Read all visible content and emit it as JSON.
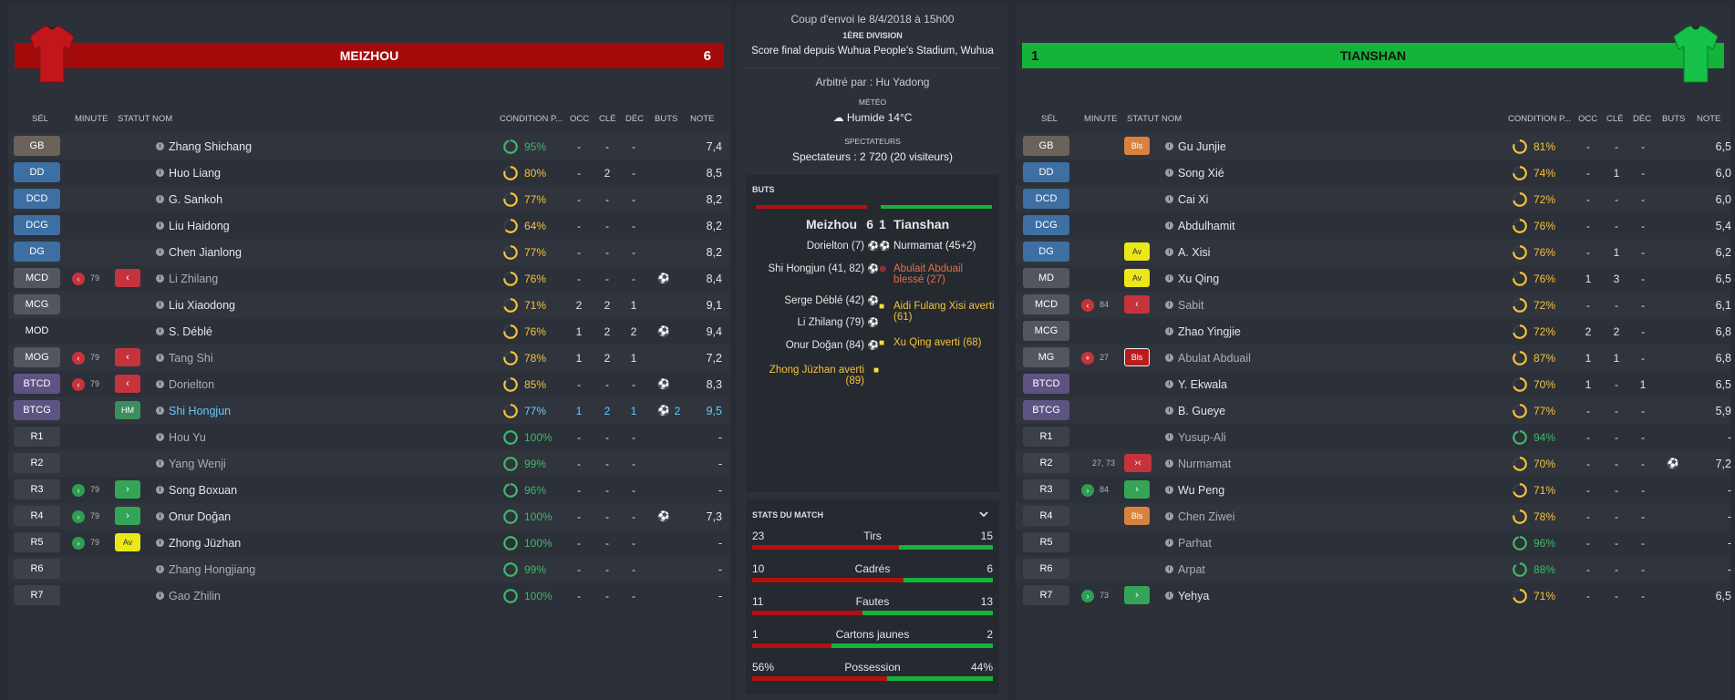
{
  "home": {
    "name": "MEIZHOU",
    "score": "6"
  },
  "away": {
    "name": "TIANSHAN",
    "score": "1"
  },
  "colors": {
    "home": "#a30b0b",
    "away": "#14b33a",
    "condition_full": "#3fb86a",
    "condition_partial": "#f6c23c"
  },
  "columns": {
    "sel": "SÉL",
    "minute": "MINUTE",
    "statut": "STATUT",
    "nom": "NOM",
    "cond": "CONDITION P...",
    "occ": "OCC",
    "cle": "CLÉ",
    "dec": "DÉC",
    "buts": "BUTS",
    "note": "NOTE"
  },
  "home_players": [
    {
      "pos": "GB",
      "name": "Zhang Shichang",
      "cond": "95%",
      "occ": "-",
      "cle": "-",
      "dec": "-",
      "note": "7,4"
    },
    {
      "pos": "DD",
      "name": "Huo Liang",
      "cond": "80%",
      "occ": "-",
      "cle": "2",
      "dec": "-",
      "note": "8,5"
    },
    {
      "pos": "DCD",
      "name": "G. Sankoh",
      "cond": "77%",
      "occ": "-",
      "cle": "-",
      "dec": "-",
      "note": "8,2"
    },
    {
      "pos": "DCG",
      "name": "Liu Haidong",
      "cond": "64%",
      "occ": "-",
      "cle": "-",
      "dec": "-",
      "note": "8,2"
    },
    {
      "pos": "DG",
      "name": "Chen Jianlong",
      "cond": "77%",
      "occ": "-",
      "cle": "-",
      "dec": "-",
      "note": "8,2"
    },
    {
      "pos": "MCD",
      "minute": "79",
      "name": "Li Zhilang",
      "cond": "76%",
      "occ": "-",
      "cle": "-",
      "dec": "-",
      "note": "8,4"
    },
    {
      "pos": "MCG",
      "name": "Liu Xiaodong",
      "cond": "71%",
      "occ": "2",
      "cle": "2",
      "dec": "1",
      "note": "9,1"
    },
    {
      "pos": "MOD",
      "name": "S. Déblé",
      "cond": "76%",
      "occ": "1",
      "cle": "2",
      "dec": "2",
      "note": "9,4"
    },
    {
      "pos": "MOG",
      "minute": "79",
      "name": "Tang Shi",
      "cond": "78%",
      "occ": "1",
      "cle": "2",
      "dec": "1",
      "note": "7,2"
    },
    {
      "pos": "BTCD",
      "minute": "79",
      "name": "Dorielton",
      "cond": "85%",
      "occ": "-",
      "cle": "-",
      "dec": "-",
      "note": "8,3"
    },
    {
      "pos": "BTCG",
      "statut": "HM",
      "name": "Shi Hongjun",
      "cond": "77%",
      "occ": "1",
      "cle": "2",
      "dec": "1",
      "buts": "2",
      "note": "9,5"
    },
    {
      "pos": "R1",
      "name": "Hou Yu",
      "cond": "100%",
      "occ": "-",
      "cle": "-",
      "dec": "-",
      "note": "-"
    },
    {
      "pos": "R2",
      "name": "Yang Wenji",
      "cond": "99%",
      "occ": "-",
      "cle": "-",
      "dec": "-",
      "note": "-"
    },
    {
      "pos": "R3",
      "minute": "79",
      "name": "Song Boxuan",
      "cond": "96%",
      "occ": "-",
      "cle": "-",
      "dec": "-",
      "note": "-"
    },
    {
      "pos": "R4",
      "minute": "79",
      "name": "Onur Doğan",
      "cond": "100%",
      "occ": "-",
      "cle": "-",
      "dec": "-",
      "note": "7,3"
    },
    {
      "pos": "R5",
      "minute": "79",
      "statut": "Av",
      "name": "Zhong Jüzhan",
      "cond": "100%",
      "occ": "-",
      "cle": "-",
      "dec": "-",
      "note": "-"
    },
    {
      "pos": "R6",
      "name": "Zhang Hongjiang",
      "cond": "99%",
      "occ": "-",
      "cle": "-",
      "dec": "-",
      "note": "-"
    },
    {
      "pos": "R7",
      "name": "Gao Zhilin",
      "cond": "100%",
      "occ": "-",
      "cle": "-",
      "dec": "-",
      "note": "-"
    }
  ],
  "away_players": [
    {
      "pos": "GB",
      "statut": "Bls",
      "name": "Gu Junjie",
      "cond": "81%",
      "occ": "-",
      "cle": "-",
      "dec": "-",
      "note": "6,5"
    },
    {
      "pos": "DD",
      "name": "Song Xié",
      "cond": "74%",
      "occ": "-",
      "cle": "1",
      "dec": "-",
      "note": "6,0"
    },
    {
      "pos": "DCD",
      "name": "Cai Xi",
      "cond": "72%",
      "occ": "-",
      "cle": "-",
      "dec": "-",
      "note": "6,0"
    },
    {
      "pos": "DCG",
      "name": "Abdulhamit",
      "cond": "76%",
      "occ": "-",
      "cle": "-",
      "dec": "-",
      "note": "5,4"
    },
    {
      "pos": "DG",
      "statut": "Av",
      "name": "A. Xisi",
      "cond": "76%",
      "occ": "-",
      "cle": "1",
      "dec": "-",
      "note": "6,2"
    },
    {
      "pos": "MD",
      "statut": "Av",
      "name": "Xu Qing",
      "cond": "76%",
      "occ": "1",
      "cle": "3",
      "dec": "-",
      "note": "6,5"
    },
    {
      "pos": "MCD",
      "minute": "84",
      "name": "Sabit",
      "cond": "72%",
      "occ": "-",
      "cle": "-",
      "dec": "-",
      "note": "6,1"
    },
    {
      "pos": "MCG",
      "name": "Zhao Yingjie",
      "cond": "72%",
      "occ": "2",
      "cle": "2",
      "dec": "-",
      "note": "6,8"
    },
    {
      "pos": "MG",
      "minute": "27",
      "statut": "Bls",
      "name": "Abulat Abduail",
      "cond": "87%",
      "occ": "1",
      "cle": "1",
      "dec": "-",
      "note": "6,8"
    },
    {
      "pos": "BTCD",
      "name": "Y. Ekwala",
      "cond": "70%",
      "occ": "1",
      "cle": "-",
      "dec": "1",
      "note": "6,5"
    },
    {
      "pos": "BTCG",
      "name": "B. Gueye",
      "cond": "77%",
      "occ": "-",
      "cle": "-",
      "dec": "-",
      "note": "5,9"
    },
    {
      "pos": "R1",
      "name": "Yusup-Ali",
      "cond": "94%",
      "occ": "-",
      "cle": "-",
      "dec": "-",
      "note": "-"
    },
    {
      "pos": "R2",
      "minute": "27, 73",
      "name": "Nurmamat",
      "cond": "70%",
      "occ": "-",
      "cle": "-",
      "dec": "-",
      "note": "7,2"
    },
    {
      "pos": "R3",
      "minute": "84",
      "name": "Wu Peng",
      "cond": "71%",
      "occ": "-",
      "cle": "-",
      "dec": "-",
      "note": "-"
    },
    {
      "pos": "R4",
      "statut": "Bls",
      "name": "Chen Ziwei",
      "cond": "78%",
      "occ": "-",
      "cle": "-",
      "dec": "-",
      "note": "-"
    },
    {
      "pos": "R5",
      "name": "Parhat",
      "cond": "96%",
      "occ": "-",
      "cle": "-",
      "dec": "-",
      "note": "-"
    },
    {
      "pos": "R6",
      "name": "Arpat",
      "cond": "88%",
      "occ": "-",
      "cle": "-",
      "dec": "-",
      "note": "-"
    },
    {
      "pos": "R7",
      "minute": "73",
      "name": "Yehya",
      "cond": "71%",
      "occ": "-",
      "cle": "-",
      "dec": "-",
      "note": "6,5"
    }
  ],
  "match": {
    "kickoff": "Coup d'envoi le 8/4/2018 à 15h00",
    "division": "1ÈRE DIVISION",
    "final": "Score final depuis Wuhua People's Stadium, Wuhua",
    "referee": "Arbitré par : Hu Yadong",
    "weather_label": "MÉTÉO",
    "weather": "Humide 14°C",
    "spectators_label": "SPECTATEURS",
    "spectators": "Spectateurs : 2 720 (20 visiteurs)"
  },
  "goals": {
    "title": "BUTS",
    "home_team": "Meizhou",
    "home_score": "6",
    "away_score": "1",
    "away_team": "Tianshan",
    "home_events": [
      "Dorielton (7)",
      "Shi Hongjun (41, 82)",
      "Serge Déblé (42)",
      "Li Zhilang (79)",
      "Onur Doğan (84)",
      "Zhong Jüzhan averti (89)"
    ],
    "away_events": [
      "Nurmamat (45+2)",
      "Abulait Abduail blessé (27)",
      "Aidi Fulang Xisi averti (61)",
      "Xu Qing averti (68)"
    ]
  },
  "stats": {
    "title": "STATS DU MATCH",
    "rows": [
      {
        "label": "Tirs",
        "home": "23",
        "away": "15",
        "home_share": 0.61
      },
      {
        "label": "Cadrés",
        "home": "10",
        "away": "6",
        "home_share": 0.63
      },
      {
        "label": "Fautes",
        "home": "11",
        "away": "13",
        "home_share": 0.46
      },
      {
        "label": "Cartons jaunes",
        "home": "1",
        "away": "2",
        "home_share": 0.33
      },
      {
        "label": "Possession",
        "home": "56%",
        "away": "44%",
        "home_share": 0.56
      }
    ]
  }
}
